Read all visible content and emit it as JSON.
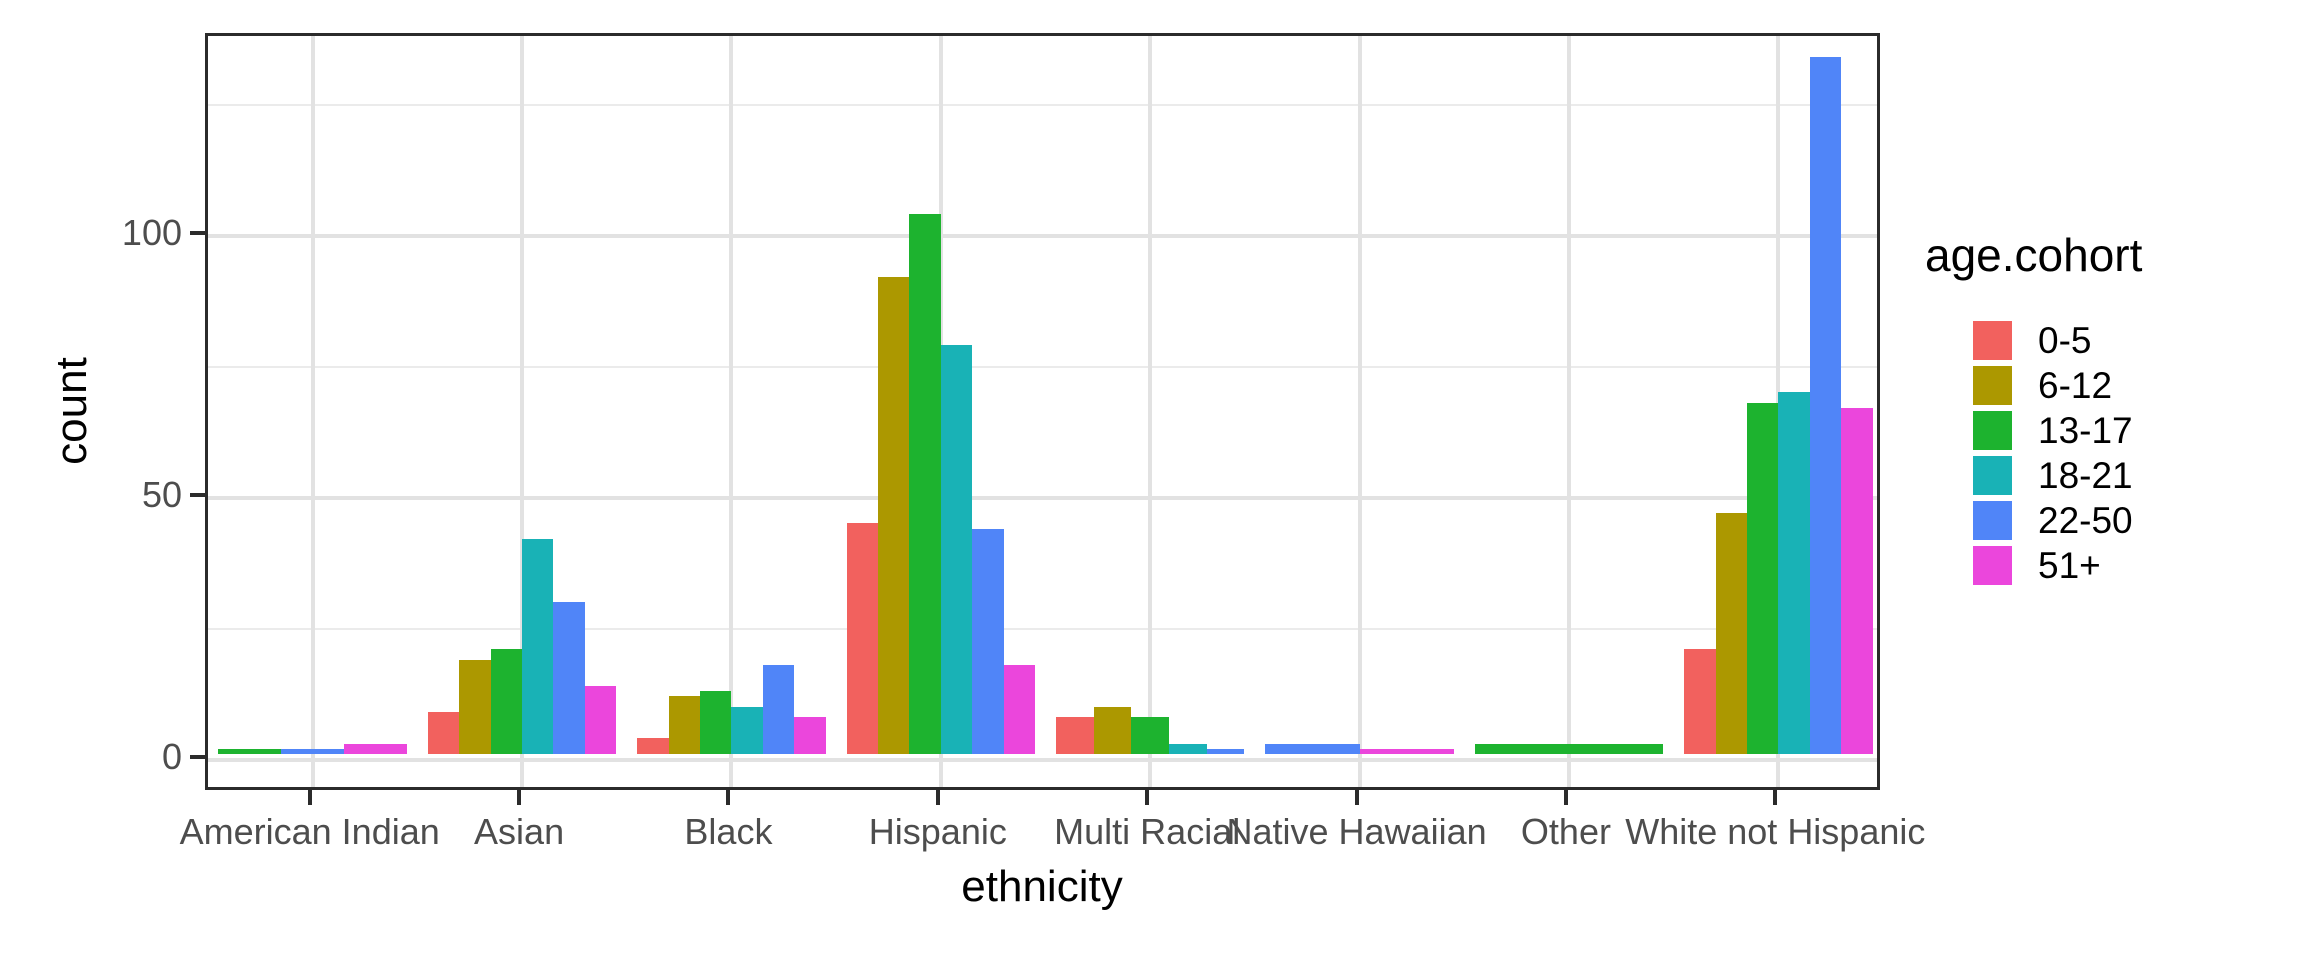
{
  "chart_data": {
    "type": "bar",
    "subtype": "grouped-dodged",
    "title": "",
    "xlabel": "ethnicity",
    "ylabel": "count",
    "categories": [
      "American Indian",
      "Asian",
      "Black",
      "Hispanic",
      "Multi Racial",
      "Native Hawaiian",
      "Other",
      "White not Hispanic"
    ],
    "series": [
      {
        "name": "0-5",
        "color": "#f2615e",
        "values": [
          null,
          8,
          3,
          44,
          7,
          null,
          null,
          20
        ]
      },
      {
        "name": "6-12",
        "color": "#ac9800",
        "values": [
          null,
          18,
          11,
          91,
          9,
          null,
          null,
          46
        ]
      },
      {
        "name": "13-17",
        "color": "#1db32f",
        "values": [
          1,
          20,
          12,
          103,
          7,
          null,
          2,
          67
        ]
      },
      {
        "name": "18-21",
        "color": "#19b2b6",
        "values": [
          null,
          41,
          9,
          78,
          2,
          null,
          null,
          69
        ]
      },
      {
        "name": "22-50",
        "color": "#5085f8",
        "values": [
          1,
          29,
          17,
          43,
          1,
          2,
          null,
          133
        ]
      },
      {
        "name": "51+",
        "color": "#eb46dc",
        "values": [
          2,
          13,
          7,
          17,
          null,
          1,
          null,
          66
        ]
      }
    ],
    "y_ticks": [
      0,
      50,
      100
    ],
    "y_minor_ticks": [
      25,
      75,
      125
    ],
    "ylim": [
      0,
      139
    ],
    "grid": true,
    "legend_title": "age.cohort",
    "legend_position": "right",
    "panel_border_color": "#2b2b2b",
    "grid_major_color": "#e2e2e2",
    "grid_minor_color": "#ebebeb",
    "tick_label_color": "#4d4d4d",
    "axis_title_color": "#000000"
  }
}
